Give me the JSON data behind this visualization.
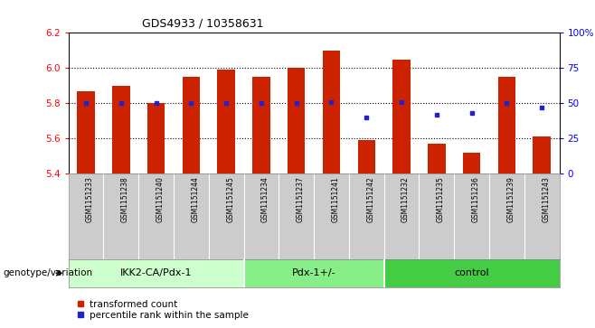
{
  "title": "GDS4933 / 10358631",
  "samples": [
    "GSM1151233",
    "GSM1151238",
    "GSM1151240",
    "GSM1151244",
    "GSM1151245",
    "GSM1151234",
    "GSM1151237",
    "GSM1151241",
    "GSM1151242",
    "GSM1151232",
    "GSM1151235",
    "GSM1151236",
    "GSM1151239",
    "GSM1151243"
  ],
  "bar_values": [
    5.87,
    5.9,
    5.8,
    5.95,
    5.99,
    5.95,
    6.0,
    6.1,
    5.59,
    6.05,
    5.57,
    5.52,
    5.95,
    5.61
  ],
  "percentile_values": [
    50,
    50,
    50,
    50,
    50,
    50,
    50,
    51,
    40,
    51,
    42,
    43,
    50,
    47
  ],
  "bar_base": 5.4,
  "ylim_left": [
    5.4,
    6.2
  ],
  "ylim_right": [
    0,
    100
  ],
  "yticks_left": [
    5.4,
    5.6,
    5.8,
    6.0,
    6.2
  ],
  "yticks_right": [
    0,
    25,
    50,
    75,
    100
  ],
  "ytick_labels_right": [
    "0",
    "25",
    "50",
    "75",
    "100%"
  ],
  "bar_color": "#cc2200",
  "percentile_color": "#2222cc",
  "groups": [
    {
      "label": "IKK2-CA/Pdx-1",
      "start": 0,
      "end": 5,
      "color": "#ccffcc"
    },
    {
      "label": "Pdx-1+/-",
      "start": 5,
      "end": 9,
      "color": "#88ee88"
    },
    {
      "label": "control",
      "start": 9,
      "end": 14,
      "color": "#44cc44"
    }
  ],
  "xlabel_group": "genotype/variation",
  "legend_bar": "transformed count",
  "legend_pct": "percentile rank within the sample",
  "grid_dotted_values": [
    5.6,
    5.8,
    6.0
  ],
  "tick_area_bg": "#cccccc",
  "plot_bg": "#ffffff"
}
